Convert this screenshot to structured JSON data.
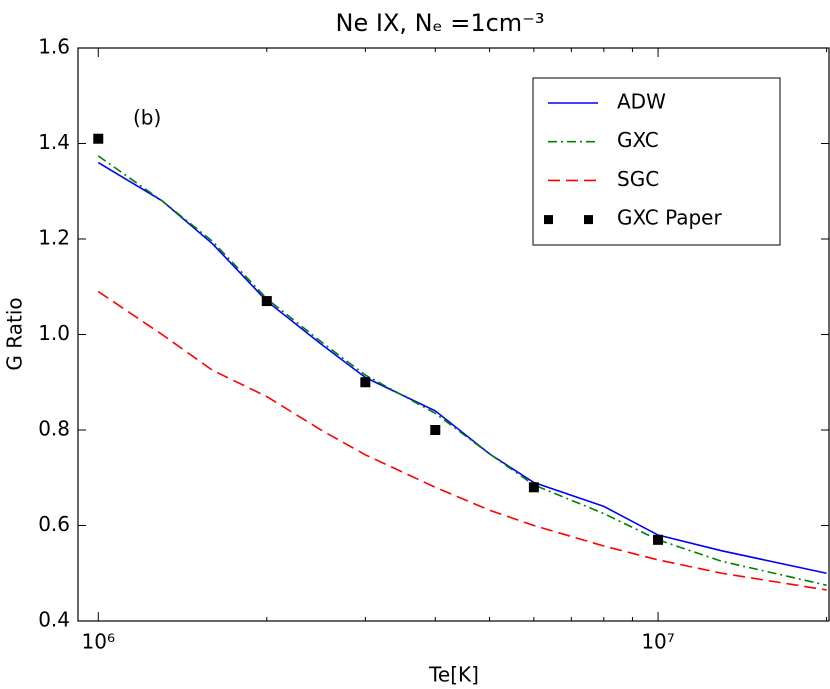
{
  "chart_data": {
    "type": "line",
    "title": "Ne IX, Nₑ =1cm⁻³",
    "annotation": "(b)",
    "x_label": "Te[K]",
    "y_label": "G Ratio",
    "x_scale": "log",
    "xlim": [
      920000,
      20200000
    ],
    "ylim": [
      0.4,
      1.6
    ],
    "xticks": [
      {
        "value": 1000000,
        "label": "10⁶"
      },
      {
        "value": 10000000,
        "label": "10⁷"
      }
    ],
    "xminorticks": [
      2000000,
      3000000,
      4000000,
      5000000,
      6000000,
      7000000,
      8000000,
      9000000,
      20000000
    ],
    "yticks": [
      0.4,
      0.6,
      0.8,
      {
        "value": 1.0,
        "label": "1.0"
      },
      1.2,
      1.4,
      1.6
    ],
    "legend": "upper right",
    "series": [
      {
        "name": "ADW",
        "color": "#0000ff",
        "linestyle": "solid",
        "x": [
          1000000,
          1300000,
          1600000,
          2000000,
          2500000,
          3000000,
          4000000,
          5000000,
          6000000,
          8000000,
          10000000,
          13000000,
          20000000
        ],
        "values": [
          1.36,
          1.28,
          1.19,
          1.07,
          0.98,
          0.91,
          0.84,
          0.75,
          0.69,
          0.64,
          0.58,
          0.547,
          0.5
        ]
      },
      {
        "name": "GXC",
        "color": "#008000",
        "linestyle": "dashdot",
        "x": [
          1000000,
          1300000,
          1600000,
          2000000,
          2500000,
          3000000,
          4000000,
          5000000,
          6000000,
          8000000,
          10000000,
          13000000,
          20000000
        ],
        "values": [
          1.374,
          1.28,
          1.195,
          1.075,
          0.985,
          0.915,
          0.835,
          0.75,
          0.685,
          0.625,
          0.57,
          0.525,
          0.475
        ]
      },
      {
        "name": "SGC",
        "color": "#ff0000",
        "linestyle": "dashed",
        "x": [
          1000000,
          1300000,
          1600000,
          2000000,
          2500000,
          3000000,
          4000000,
          5000000,
          6000000,
          8000000,
          10000000,
          13000000,
          20000000
        ],
        "values": [
          1.09,
          1.0,
          0.925,
          0.87,
          0.8,
          0.748,
          0.68,
          0.632,
          0.6,
          0.557,
          0.528,
          0.5,
          0.465
        ]
      },
      {
        "name": "GXC Paper",
        "color": "#000000",
        "linestyle": "none",
        "marker": "square",
        "x": [
          1000000,
          2000000,
          3000000,
          4000000,
          6000000,
          10000000
        ],
        "values": [
          1.41,
          1.07,
          0.9,
          0.8,
          0.68,
          0.57
        ]
      }
    ]
  }
}
